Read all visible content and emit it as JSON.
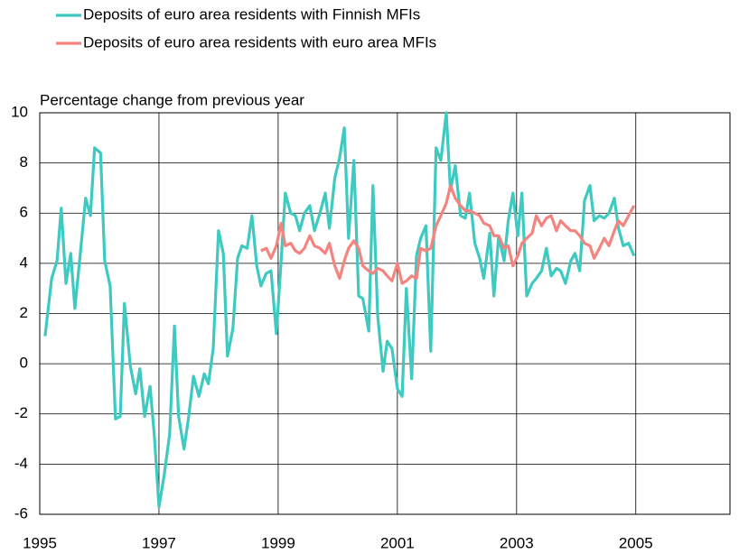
{
  "chart_data": {
    "type": "line",
    "y_label": "Percentage change from previous year",
    "xlim": [
      1995,
      2006.58
    ],
    "xticks": [
      1995,
      1997,
      1999,
      2001,
      2003,
      2005
    ],
    "ylim": [
      -6,
      10
    ],
    "yticks": [
      -6,
      -4,
      -2,
      0,
      2,
      4,
      6,
      8,
      10
    ],
    "grid": true,
    "legend": "top",
    "x": [
      1995.09,
      1995.2,
      1995.29,
      1995.36,
      1995.44,
      1995.52,
      1995.59,
      1995.68,
      1995.77,
      1995.85,
      1995.92,
      1996.02,
      1996.09,
      1996.18,
      1996.27,
      1996.35,
      1996.42,
      1996.52,
      1996.61,
      1996.68,
      1996.76,
      1996.85,
      1996.92,
      1997.0,
      1997.09,
      1997.18,
      1997.26,
      1997.33,
      1997.42,
      1997.5,
      1997.58,
      1997.67,
      1997.76,
      1997.83,
      1997.91,
      1998.0,
      1998.08,
      1998.15,
      1998.24,
      1998.32,
      1998.39,
      1998.48,
      1998.56,
      1998.64,
      1998.71,
      1998.8,
      1998.88,
      1998.97,
      1999.05,
      1999.12,
      1999.21,
      1999.29,
      1999.36,
      1999.44,
      1999.53,
      1999.61,
      1999.7,
      1999.79,
      1999.86,
      1999.95,
      2000.03,
      2000.11,
      2000.18,
      2000.27,
      2000.35,
      2000.42,
      2000.52,
      2000.59,
      2000.67,
      2000.76,
      2000.83,
      2000.91,
      2001.0,
      2001.08,
      2001.15,
      2001.24,
      2001.32,
      2001.39,
      2001.48,
      2001.56,
      2001.65,
      2001.73,
      2001.82,
      2001.89,
      2001.97,
      2002.06,
      2002.14,
      2002.21,
      2002.3,
      2002.38,
      2002.45,
      2002.55,
      2002.62,
      2002.7,
      2002.79,
      2002.86,
      2002.94,
      2003.02,
      2003.09,
      2003.17,
      2003.26,
      2003.33,
      2003.42,
      2003.5,
      2003.58,
      2003.67,
      2003.74,
      2003.82,
      2003.91,
      2003.98,
      2004.06,
      2004.14,
      2004.23,
      2004.3,
      2004.39,
      2004.47,
      2004.55,
      2004.64,
      2004.71,
      2004.79,
      2004.88,
      2004.97
    ],
    "series": [
      {
        "name": "Deposits of euro area residents with Finnish MFIs",
        "color": "#3ec9c1",
        "values": [
          1.1,
          3.4,
          4.1,
          6.2,
          3.2,
          4.4,
          2.2,
          4.4,
          6.6,
          5.9,
          8.6,
          8.4,
          4.1,
          3.1,
          -2.2,
          -2.1,
          2.4,
          -0.1,
          -1.2,
          -0.2,
          -2.1,
          -0.9,
          -2.8,
          -5.7,
          -4.4,
          -2.8,
          1.5,
          -2.1,
          -3.4,
          -2.1,
          -0.5,
          -1.3,
          -0.4,
          -0.8,
          0.6,
          5.3,
          4.4,
          0.3,
          1.4,
          4.2,
          4.7,
          4.6,
          5.9,
          3.9,
          3.1,
          3.6,
          3.7,
          1.2,
          4.1,
          6.8,
          6.0,
          5.9,
          5.3,
          6.0,
          6.3,
          5.3,
          6.0,
          6.8,
          5.4,
          7.4,
          8.2,
          9.4,
          5.0,
          8.1,
          2.7,
          2.6,
          1.3,
          7.1,
          1.9,
          -0.3,
          0.9,
          0.6,
          -1.0,
          -1.3,
          3.0,
          -0.6,
          4.3,
          5.0,
          5.5,
          0.5,
          8.6,
          8.1,
          10.0,
          6.9,
          7.9,
          5.9,
          5.8,
          6.8,
          4.8,
          4.2,
          3.4,
          5.2,
          2.7,
          5.1,
          4.1,
          5.7,
          6.8,
          5.1,
          6.8,
          2.7,
          3.2,
          3.4,
          3.7,
          4.6,
          3.5,
          3.8,
          3.7,
          3.2,
          4.1,
          4.4,
          3.7,
          6.5,
          7.1,
          5.7,
          5.9,
          5.8,
          6.0,
          6.6,
          5.4,
          4.7,
          4.8,
          4.3
        ]
      },
      {
        "name": "Deposits of euro area residents with euro area MFIs",
        "color": "#f48480",
        "values": [
          null,
          null,
          null,
          null,
          null,
          null,
          null,
          null,
          null,
          null,
          null,
          null,
          null,
          null,
          null,
          null,
          null,
          null,
          null,
          null,
          null,
          null,
          null,
          null,
          null,
          null,
          null,
          null,
          null,
          null,
          null,
          null,
          null,
          null,
          null,
          null,
          null,
          null,
          null,
          null,
          null,
          null,
          null,
          null,
          4.5,
          4.6,
          4.2,
          4.7,
          5.6,
          4.7,
          4.8,
          4.5,
          4.4,
          4.6,
          5.1,
          4.7,
          4.6,
          4.4,
          4.8,
          3.9,
          3.4,
          4.1,
          4.6,
          4.9,
          4.6,
          3.9,
          3.7,
          3.6,
          3.8,
          3.7,
          3.5,
          3.3,
          4.0,
          3.2,
          3.3,
          3.5,
          3.4,
          4.6,
          4.5,
          4.6,
          5.5,
          5.9,
          6.4,
          7.1,
          6.6,
          6.3,
          6.1,
          6.1,
          6.0,
          5.9,
          5.6,
          5.5,
          5.1,
          5.1,
          4.6,
          4.7,
          3.9,
          4.3,
          4.8,
          5.0,
          5.2,
          5.9,
          5.5,
          5.8,
          5.9,
          5.3,
          5.7,
          5.5,
          5.3,
          5.3,
          5.1,
          4.8,
          4.7,
          4.2,
          4.6,
          5.0,
          4.7,
          5.3,
          5.7,
          5.5,
          5.9,
          6.3
        ]
      }
    ]
  }
}
